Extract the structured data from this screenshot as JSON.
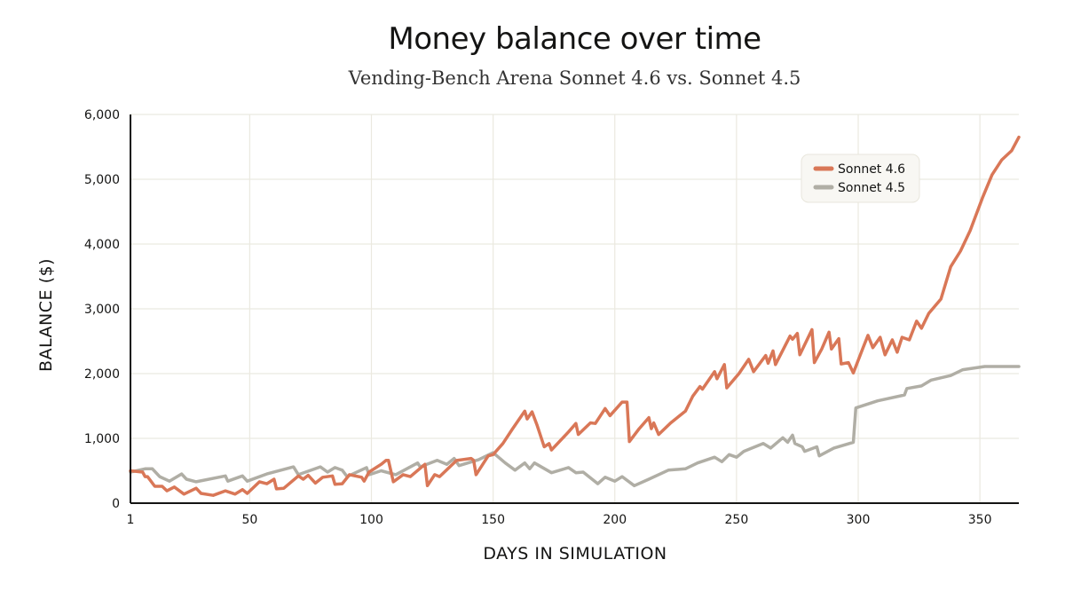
{
  "chart_data": {
    "type": "line",
    "title": "Money balance over time",
    "subtitle": "Vending-Bench Arena Sonnet 4.6 vs. Sonnet 4.5",
    "xlabel": "DAYS IN SIMULATION",
    "ylabel": "BALANCE ($)",
    "xlim": [
      1,
      366
    ],
    "ylim": [
      0,
      6000
    ],
    "xticks": [
      1,
      50,
      100,
      150,
      200,
      250,
      300,
      350
    ],
    "xtick_labels": [
      "1",
      "50",
      "100",
      "150",
      "200",
      "250",
      "300",
      "350"
    ],
    "yticks": [
      0,
      1000,
      2000,
      3000,
      4000,
      5000,
      6000
    ],
    "ytick_labels": [
      "0",
      "1,000",
      "2,000",
      "3,000",
      "4,000",
      "5,000",
      "6,000"
    ],
    "grid": true,
    "legend_position": "top-right",
    "series": [
      {
        "name": "Sonnet 4.6",
        "color": "#D97757",
        "points": [
          [
            1,
            500
          ],
          [
            6,
            480
          ],
          [
            7,
            410
          ],
          [
            8,
            410
          ],
          [
            11,
            260
          ],
          [
            14,
            260
          ],
          [
            16,
            190
          ],
          [
            19,
            250
          ],
          [
            23,
            140
          ],
          [
            28,
            230
          ],
          [
            30,
            150
          ],
          [
            35,
            120
          ],
          [
            40,
            190
          ],
          [
            44,
            140
          ],
          [
            47,
            210
          ],
          [
            49,
            150
          ],
          [
            54,
            330
          ],
          [
            57,
            300
          ],
          [
            60,
            370
          ],
          [
            61,
            220
          ],
          [
            64,
            230
          ],
          [
            70,
            420
          ],
          [
            72,
            370
          ],
          [
            74,
            430
          ],
          [
            77,
            310
          ],
          [
            80,
            400
          ],
          [
            84,
            420
          ],
          [
            85,
            290
          ],
          [
            88,
            300
          ],
          [
            91,
            440
          ],
          [
            96,
            400
          ],
          [
            97,
            340
          ],
          [
            99,
            480
          ],
          [
            104,
            600
          ],
          [
            106,
            660
          ],
          [
            107,
            660
          ],
          [
            109,
            330
          ],
          [
            113,
            440
          ],
          [
            116,
            410
          ],
          [
            122,
            600
          ],
          [
            123,
            270
          ],
          [
            126,
            440
          ],
          [
            128,
            410
          ],
          [
            135,
            660
          ],
          [
            141,
            690
          ],
          [
            142,
            660
          ],
          [
            143,
            440
          ],
          [
            148,
            730
          ],
          [
            150,
            750
          ],
          [
            154,
            920
          ],
          [
            158,
            1150
          ],
          [
            163,
            1420
          ],
          [
            164,
            1300
          ],
          [
            166,
            1410
          ],
          [
            168,
            1210
          ],
          [
            171,
            870
          ],
          [
            173,
            920
          ],
          [
            174,
            820
          ],
          [
            181,
            1100
          ],
          [
            184,
            1230
          ],
          [
            185,
            1060
          ],
          [
            190,
            1240
          ],
          [
            192,
            1230
          ],
          [
            196,
            1460
          ],
          [
            198,
            1350
          ],
          [
            203,
            1560
          ],
          [
            205,
            1560
          ],
          [
            206,
            950
          ],
          [
            210,
            1150
          ],
          [
            214,
            1320
          ],
          [
            215,
            1150
          ],
          [
            216,
            1240
          ],
          [
            218,
            1060
          ],
          [
            223,
            1240
          ],
          [
            229,
            1420
          ],
          [
            232,
            1650
          ],
          [
            235,
            1800
          ],
          [
            236,
            1760
          ],
          [
            241,
            2030
          ],
          [
            242,
            1920
          ],
          [
            245,
            2140
          ],
          [
            246,
            1780
          ],
          [
            251,
            2000
          ],
          [
            255,
            2220
          ],
          [
            257,
            2030
          ],
          [
            262,
            2280
          ],
          [
            263,
            2160
          ],
          [
            265,
            2350
          ],
          [
            266,
            2140
          ],
          [
            272,
            2580
          ],
          [
            273,
            2530
          ],
          [
            275,
            2620
          ],
          [
            276,
            2290
          ],
          [
            281,
            2680
          ],
          [
            282,
            2170
          ],
          [
            285,
            2380
          ],
          [
            288,
            2640
          ],
          [
            289,
            2380
          ],
          [
            292,
            2540
          ],
          [
            293,
            2150
          ],
          [
            296,
            2170
          ],
          [
            298,
            2010
          ],
          [
            302,
            2400
          ],
          [
            304,
            2590
          ],
          [
            306,
            2400
          ],
          [
            309,
            2560
          ],
          [
            311,
            2290
          ],
          [
            314,
            2520
          ],
          [
            316,
            2330
          ],
          [
            318,
            2560
          ],
          [
            321,
            2520
          ],
          [
            324,
            2810
          ],
          [
            326,
            2700
          ],
          [
            329,
            2930
          ],
          [
            334,
            3150
          ],
          [
            338,
            3650
          ],
          [
            342,
            3890
          ],
          [
            346,
            4210
          ],
          [
            351,
            4710
          ],
          [
            355,
            5070
          ],
          [
            359,
            5300
          ],
          [
            363,
            5440
          ],
          [
            366,
            5650
          ]
        ]
      },
      {
        "name": "Sonnet 4.5",
        "color": "#B0AEA5",
        "points": [
          [
            1,
            480
          ],
          [
            7,
            530
          ],
          [
            10,
            530
          ],
          [
            13,
            410
          ],
          [
            17,
            340
          ],
          [
            22,
            450
          ],
          [
            24,
            370
          ],
          [
            28,
            330
          ],
          [
            40,
            420
          ],
          [
            41,
            340
          ],
          [
            47,
            420
          ],
          [
            49,
            340
          ],
          [
            57,
            450
          ],
          [
            68,
            560
          ],
          [
            70,
            440
          ],
          [
            79,
            560
          ],
          [
            82,
            480
          ],
          [
            85,
            550
          ],
          [
            88,
            510
          ],
          [
            90,
            410
          ],
          [
            98,
            550
          ],
          [
            99,
            440
          ],
          [
            104,
            500
          ],
          [
            110,
            440
          ],
          [
            119,
            620
          ],
          [
            120,
            560
          ],
          [
            127,
            660
          ],
          [
            131,
            600
          ],
          [
            134,
            690
          ],
          [
            136,
            580
          ],
          [
            144,
            670
          ],
          [
            150,
            780
          ],
          [
            155,
            620
          ],
          [
            159,
            510
          ],
          [
            163,
            620
          ],
          [
            165,
            530
          ],
          [
            167,
            620
          ],
          [
            174,
            470
          ],
          [
            181,
            550
          ],
          [
            184,
            470
          ],
          [
            187,
            480
          ],
          [
            193,
            300
          ],
          [
            196,
            400
          ],
          [
            200,
            340
          ],
          [
            203,
            410
          ],
          [
            208,
            270
          ],
          [
            214,
            370
          ],
          [
            222,
            510
          ],
          [
            229,
            530
          ],
          [
            234,
            620
          ],
          [
            241,
            710
          ],
          [
            244,
            640
          ],
          [
            247,
            750
          ],
          [
            250,
            710
          ],
          [
            253,
            800
          ],
          [
            261,
            920
          ],
          [
            264,
            850
          ],
          [
            269,
            1010
          ],
          [
            271,
            940
          ],
          [
            273,
            1050
          ],
          [
            274,
            920
          ],
          [
            277,
            870
          ],
          [
            278,
            800
          ],
          [
            283,
            870
          ],
          [
            284,
            730
          ],
          [
            290,
            850
          ],
          [
            298,
            940
          ],
          [
            299,
            1470
          ],
          [
            308,
            1580
          ],
          [
            319,
            1670
          ],
          [
            320,
            1770
          ],
          [
            326,
            1810
          ],
          [
            330,
            1900
          ],
          [
            338,
            1970
          ],
          [
            343,
            2060
          ],
          [
            352,
            2110
          ],
          [
            366,
            2110
          ]
        ]
      }
    ]
  }
}
